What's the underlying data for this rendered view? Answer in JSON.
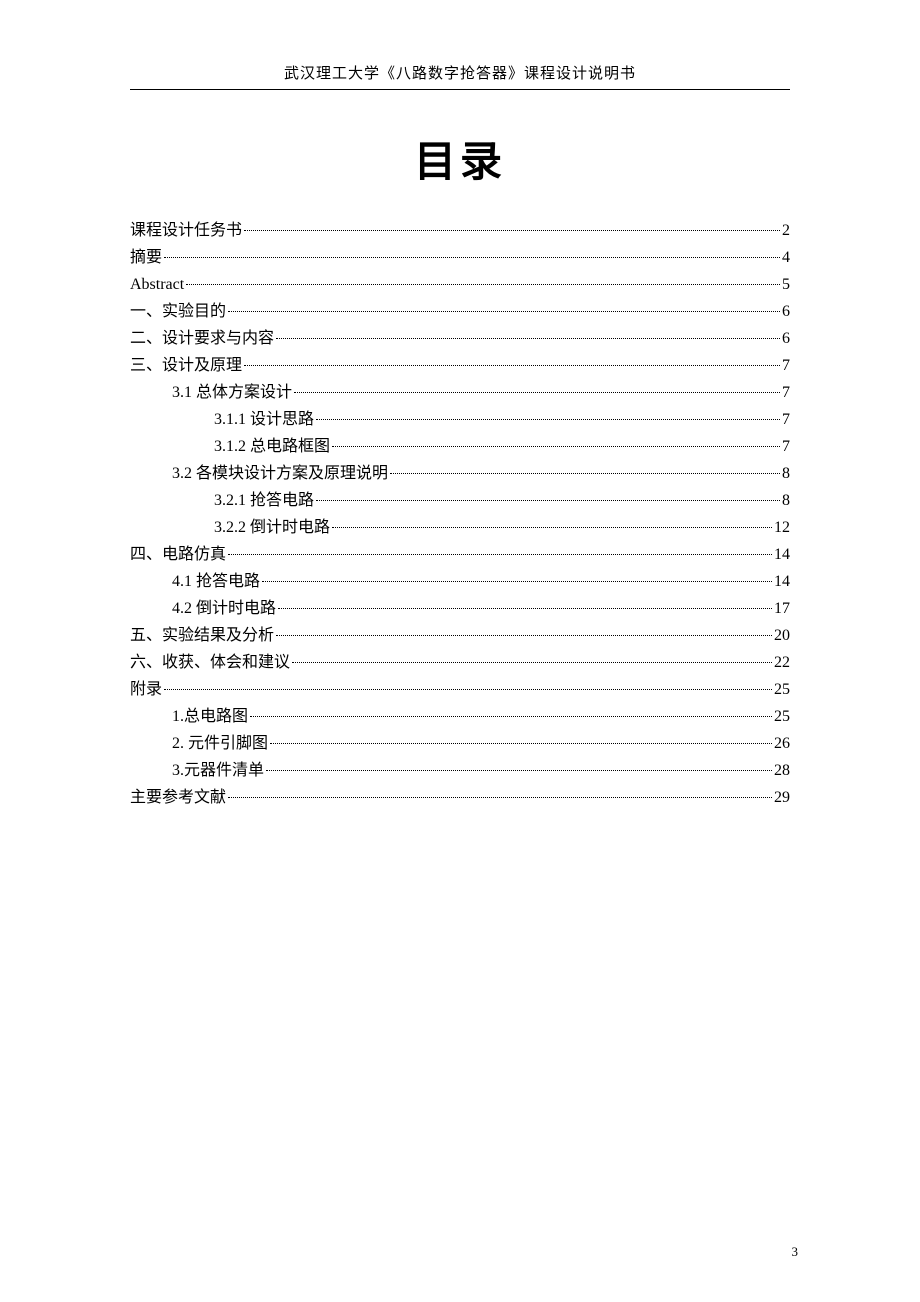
{
  "header": "武汉理工大学《八路数字抢答器》课程设计说明书",
  "title": "目录",
  "page_number": "3",
  "toc": [
    {
      "label": "课程设计任务书",
      "page": "2",
      "indent": 0
    },
    {
      "label": "摘要",
      "page": "4",
      "indent": 0
    },
    {
      "label": "Abstract",
      "page": "5",
      "indent": 0
    },
    {
      "label": "一、实验目的",
      "page": "6",
      "indent": 0
    },
    {
      "label": "二、设计要求与内容",
      "page": "6",
      "indent": 0
    },
    {
      "label": "三、设计及原理",
      "page": "7",
      "indent": 0
    },
    {
      "label": "3.1  总体方案设计",
      "page": "7",
      "indent": 1
    },
    {
      "label": "3.1.1  设计思路",
      "page": "7",
      "indent": 2
    },
    {
      "label": "3.1.2  总电路框图",
      "page": "7",
      "indent": 2
    },
    {
      "label": "3.2  各模块设计方案及原理说明",
      "page": "8",
      "indent": 1
    },
    {
      "label": "3.2.1  抢答电路",
      "page": "8",
      "indent": 2
    },
    {
      "label": "3.2.2  倒计时电路",
      "page": "12",
      "indent": 2
    },
    {
      "label": "四、电路仿真",
      "page": "14",
      "indent": 0
    },
    {
      "label": "4.1  抢答电路",
      "page": "14",
      "indent": 1
    },
    {
      "label": "4.2  倒计时电路",
      "page": "17",
      "indent": 1
    },
    {
      "label": "五、实验结果及分析",
      "page": "20",
      "indent": 0
    },
    {
      "label": "六、收获、体会和建议",
      "page": "22",
      "indent": 0
    },
    {
      "label": "附录",
      "page": "25",
      "indent": 0
    },
    {
      "label": "1.总电路图",
      "page": "25",
      "indent": 1
    },
    {
      "label": "2.  元件引脚图",
      "page": "26",
      "indent": 1
    },
    {
      "label": "3.元器件清单",
      "page": "28",
      "indent": 1
    },
    {
      "label": "主要参考文献",
      "page": "29",
      "indent": 0
    }
  ]
}
